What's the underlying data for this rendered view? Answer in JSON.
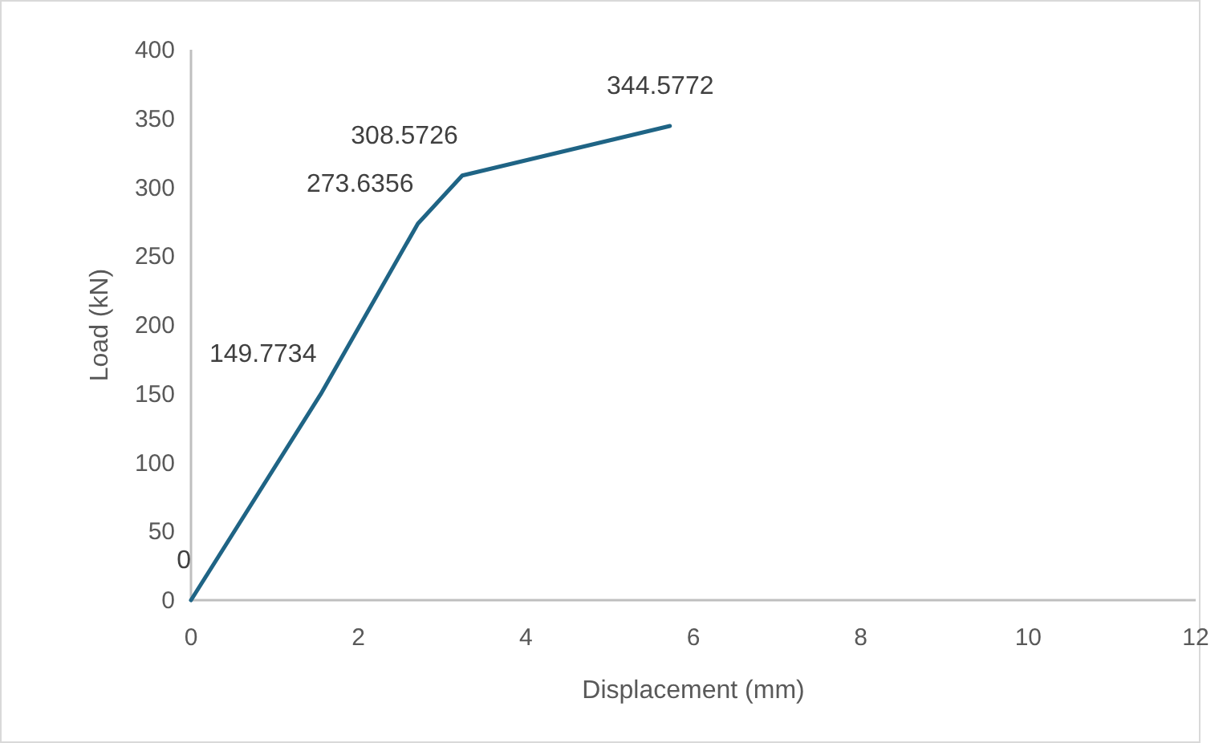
{
  "chart_data": {
    "type": "line",
    "xlabel": "Displacement (mm)",
    "ylabel": "Load (kN)",
    "series": [
      {
        "color": "#1f6485",
        "x": [
          0,
          1.55,
          2.71,
          3.24,
          5.72
        ],
        "values": [
          0,
          149.7734,
          273.6356,
          308.5726,
          344.5772
        ]
      }
    ],
    "xlim": [
      0,
      12
    ],
    "xticks": [
      0,
      2,
      4,
      6,
      8,
      10,
      12
    ],
    "ylim": [
      0,
      400
    ],
    "yticks": [
      0,
      50,
      100,
      150,
      200,
      250,
      300,
      350,
      400
    ],
    "grid": false,
    "marker": "none",
    "line_style": "solid",
    "data_labels": true
  }
}
